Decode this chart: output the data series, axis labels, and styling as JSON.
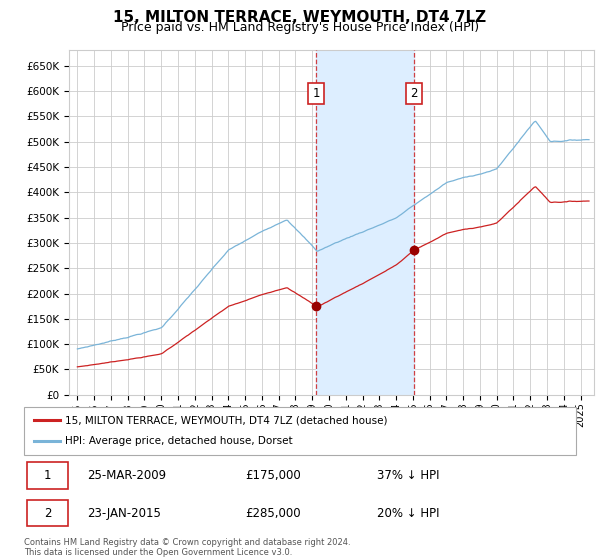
{
  "title": "15, MILTON TERRACE, WEYMOUTH, DT4 7LZ",
  "subtitle": "Price paid vs. HM Land Registry's House Price Index (HPI)",
  "title_fontsize": 11,
  "subtitle_fontsize": 9,
  "ylim": [
    0,
    680000
  ],
  "yticks": [
    0,
    50000,
    100000,
    150000,
    200000,
    250000,
    300000,
    350000,
    400000,
    450000,
    500000,
    550000,
    600000,
    650000
  ],
  "ytick_labels": [
    "£0",
    "£50K",
    "£100K",
    "£150K",
    "£200K",
    "£250K",
    "£300K",
    "£350K",
    "£400K",
    "£450K",
    "£500K",
    "£550K",
    "£600K",
    "£650K"
  ],
  "hpi_color": "#7ab4d8",
  "price_color": "#cc2222",
  "marker_color": "#990000",
  "bg_color": "#ffffff",
  "grid_color": "#cccccc",
  "highlight_fill": "#ddeeff",
  "sale1_date": 2009.23,
  "sale1_price": 175000,
  "sale1_label": "1",
  "sale2_date": 2015.07,
  "sale2_price": 285000,
  "sale2_label": "2",
  "legend_entry1": "15, MILTON TERRACE, WEYMOUTH, DT4 7LZ (detached house)",
  "legend_entry2": "HPI: Average price, detached house, Dorset",
  "table_row1": [
    "1",
    "25-MAR-2009",
    "£175,000",
    "37% ↓ HPI"
  ],
  "table_row2": [
    "2",
    "23-JAN-2015",
    "£285,000",
    "20% ↓ HPI"
  ],
  "footer": "Contains HM Land Registry data © Crown copyright and database right 2024.\nThis data is licensed under the Open Government Licence v3.0."
}
